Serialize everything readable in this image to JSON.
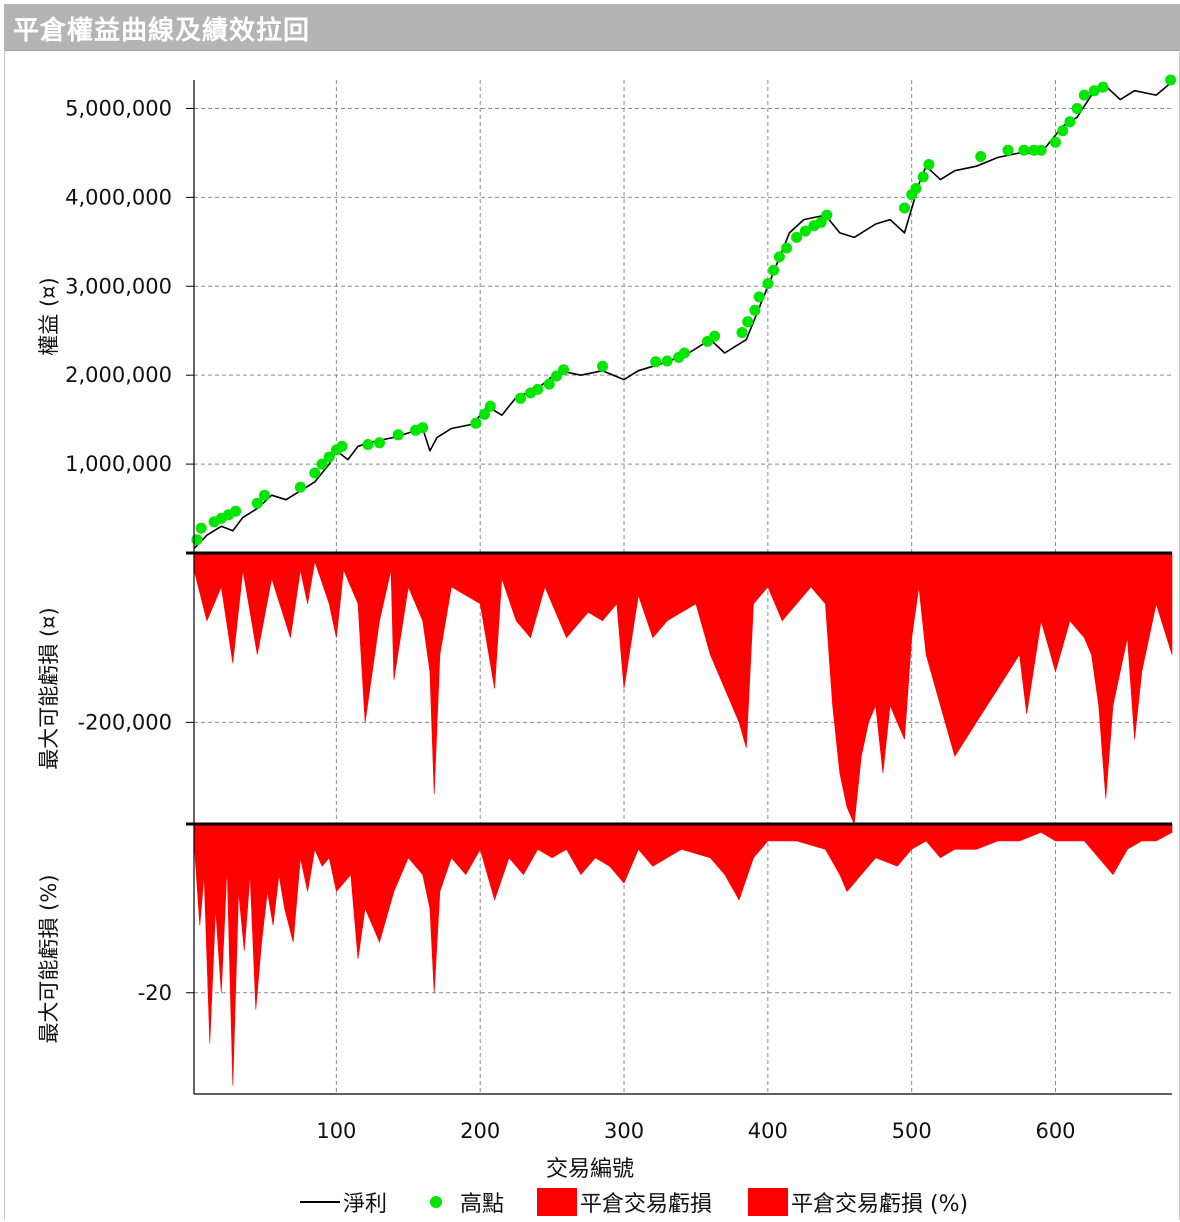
{
  "header": {
    "title": "平倉權益曲線及績效拉回"
  },
  "chart_data": {
    "type": "line",
    "xlabel": "交易編號",
    "xticks": [
      100,
      200,
      300,
      400,
      500,
      600
    ],
    "xlim": [
      1,
      681
    ],
    "grid": true,
    "legend_position": "bottom",
    "panels": [
      {
        "ylabel": "權益 (¤)",
        "yticks": [
          1000000,
          2000000,
          3000000,
          4000000,
          5000000
        ],
        "ytick_labels": [
          "1,000,000",
          "2,000,000",
          "3,000,000",
          "4,000,000",
          "5,000,000"
        ],
        "ylim": [
          0,
          5320000
        ]
      },
      {
        "ylabel": "最大可能虧損 (¤)",
        "yticks": [
          -200000
        ],
        "ytick_labels": [
          "-200,000"
        ],
        "ylim": [
          -320000,
          0
        ]
      },
      {
        "ylabel": "最大可能虧損 (%)",
        "yticks": [
          -20
        ],
        "ytick_labels": [
          "-20"
        ],
        "ylim": [
          -32,
          0
        ]
      }
    ],
    "series": [
      {
        "name": "淨利",
        "type": "line",
        "panel": 0,
        "color": "#000000",
        "x": [
          1,
          10,
          20,
          28,
          35,
          45,
          55,
          65,
          75,
          85,
          95,
          100,
          108,
          115,
          125,
          140,
          150,
          160,
          165,
          170,
          180,
          195,
          205,
          215,
          225,
          240,
          255,
          270,
          285,
          300,
          310,
          320,
          330,
          345,
          360,
          370,
          385,
          400,
          415,
          425,
          440,
          450,
          460,
          475,
          485,
          495,
          505,
          510,
          520,
          530,
          545,
          560,
          575,
          590,
          605,
          615,
          625,
          635,
          645,
          655,
          670,
          681
        ],
        "y": [
          50000,
          200000,
          300000,
          250000,
          400000,
          500000,
          650000,
          600000,
          700000,
          800000,
          1000000,
          1150000,
          1050000,
          1200000,
          1250000,
          1300000,
          1350000,
          1400000,
          1150000,
          1300000,
          1400000,
          1450000,
          1650000,
          1550000,
          1750000,
          1850000,
          2050000,
          2000000,
          2050000,
          1950000,
          2050000,
          2100000,
          2150000,
          2250000,
          2400000,
          2250000,
          2400000,
          3000000,
          3600000,
          3750000,
          3800000,
          3600000,
          3550000,
          3700000,
          3750000,
          3600000,
          4150000,
          4350000,
          4200000,
          4300000,
          4350000,
          4450000,
          4500000,
          4500000,
          4800000,
          4900000,
          5150000,
          5250000,
          5100000,
          5200000,
          5150000,
          5300000
        ]
      },
      {
        "name": "高點",
        "type": "scatter",
        "panel": 0,
        "color": "#00e600",
        "x": [
          3,
          6,
          15,
          20,
          25,
          30,
          45,
          50,
          75,
          85,
          90,
          95,
          100,
          104,
          122,
          130,
          143,
          155,
          160,
          197,
          203,
          207,
          228,
          235,
          240,
          248,
          253,
          258,
          285,
          322,
          330,
          338,
          342,
          358,
          363,
          382,
          386,
          391,
          394,
          400,
          404,
          408,
          413,
          420,
          426,
          432,
          437,
          441,
          495,
          500,
          503,
          508,
          512,
          548,
          567,
          578,
          585,
          590,
          600,
          605,
          610,
          615,
          620,
          627,
          633,
          680
        ],
        "y": [
          150000,
          280000,
          350000,
          390000,
          430000,
          470000,
          560000,
          650000,
          740000,
          900000,
          1000000,
          1080000,
          1160000,
          1200000,
          1220000,
          1240000,
          1330000,
          1380000,
          1410000,
          1460000,
          1560000,
          1650000,
          1740000,
          1800000,
          1840000,
          1900000,
          1990000,
          2060000,
          2100000,
          2150000,
          2160000,
          2200000,
          2250000,
          2380000,
          2440000,
          2480000,
          2600000,
          2730000,
          2880000,
          3030000,
          3180000,
          3330000,
          3430000,
          3550000,
          3620000,
          3680000,
          3720000,
          3800000,
          3880000,
          4030000,
          4100000,
          4230000,
          4370000,
          4460000,
          4530000,
          4530000,
          4530000,
          4530000,
          4620000,
          4750000,
          4850000,
          5000000,
          5150000,
          5200000,
          5240000,
          5320000
        ]
      },
      {
        "name": "平倉交易虧損",
        "type": "area",
        "panel": 1,
        "color": "#ff0000",
        "x": [
          1,
          10,
          20,
          28,
          35,
          45,
          55,
          68,
          75,
          80,
          85,
          95,
          100,
          105,
          115,
          120,
          130,
          138,
          140,
          150,
          160,
          165,
          168,
          172,
          180,
          200,
          210,
          215,
          225,
          235,
          245,
          260,
          275,
          285,
          295,
          300,
          310,
          320,
          330,
          350,
          360,
          370,
          380,
          385,
          390,
          400,
          410,
          420,
          430,
          440,
          445,
          450,
          455,
          460,
          465,
          470,
          475,
          480,
          485,
          490,
          495,
          500,
          505,
          510,
          520,
          530,
          545,
          560,
          575,
          580,
          590,
          600,
          610,
          620,
          625,
          630,
          635,
          640,
          645,
          650,
          655,
          660,
          670,
          681
        ],
        "y": [
          -20000,
          -80000,
          -40000,
          -130000,
          -20000,
          -120000,
          -30000,
          -100000,
          -20000,
          -60000,
          -10000,
          -60000,
          -100000,
          -20000,
          -60000,
          -200000,
          -80000,
          -20000,
          -150000,
          -40000,
          -80000,
          -140000,
          -285000,
          -120000,
          -40000,
          -60000,
          -160000,
          -30000,
          -80000,
          -100000,
          -40000,
          -100000,
          -70000,
          -80000,
          -60000,
          -160000,
          -50000,
          -100000,
          -80000,
          -60000,
          -120000,
          -160000,
          -200000,
          -230000,
          -60000,
          -40000,
          -80000,
          -60000,
          -40000,
          -60000,
          -180000,
          -260000,
          -300000,
          -320000,
          -240000,
          -200000,
          -180000,
          -260000,
          -180000,
          -200000,
          -220000,
          -100000,
          -40000,
          -120000,
          -180000,
          -240000,
          -200000,
          -160000,
          -120000,
          -190000,
          -80000,
          -140000,
          -80000,
          -100000,
          -120000,
          -180000,
          -290000,
          -180000,
          -140000,
          -100000,
          -220000,
          -140000,
          -60000,
          -120000
        ]
      },
      {
        "name": "平倉交易虧損 (%)",
        "type": "area",
        "panel": 2,
        "color": "#ff0000",
        "x": [
          1,
          5,
          8,
          12,
          16,
          20,
          24,
          28,
          32,
          36,
          40,
          44,
          48,
          52,
          56,
          60,
          64,
          70,
          75,
          80,
          85,
          90,
          95,
          100,
          110,
          115,
          120,
          130,
          140,
          150,
          160,
          165,
          168,
          172,
          180,
          190,
          200,
          210,
          220,
          230,
          240,
          250,
          260,
          270,
          280,
          290,
          300,
          310,
          320,
          340,
          360,
          370,
          380,
          390,
          400,
          420,
          440,
          450,
          455,
          460,
          465,
          475,
          490,
          500,
          510,
          520,
          530,
          545,
          560,
          575,
          590,
          600,
          620,
          630,
          640,
          650,
          660,
          670,
          681
        ],
        "y": [
          -2,
          -12,
          -6,
          -26,
          -10,
          -20,
          -5,
          -31,
          -8,
          -15,
          -6,
          -22,
          -14,
          -8,
          -12,
          -6,
          -10,
          -14,
          -4,
          -8,
          -3,
          -5,
          -4,
          -8,
          -6,
          -16,
          -10,
          -14,
          -8,
          -4,
          -6,
          -10,
          -20,
          -8,
          -4,
          -6,
          -3,
          -9,
          -4,
          -6,
          -3,
          -4,
          -3,
          -6,
          -4,
          -5,
          -7,
          -3,
          -5,
          -3,
          -4,
          -6,
          -9,
          -4,
          -2,
          -2,
          -3,
          -6,
          -8,
          -7,
          -6,
          -4,
          -5,
          -3,
          -2,
          -4,
          -3,
          -3,
          -2,
          -2,
          -1,
          -2,
          -2,
          -4,
          -6,
          -3,
          -2,
          -2,
          -1
        ]
      }
    ]
  }
}
